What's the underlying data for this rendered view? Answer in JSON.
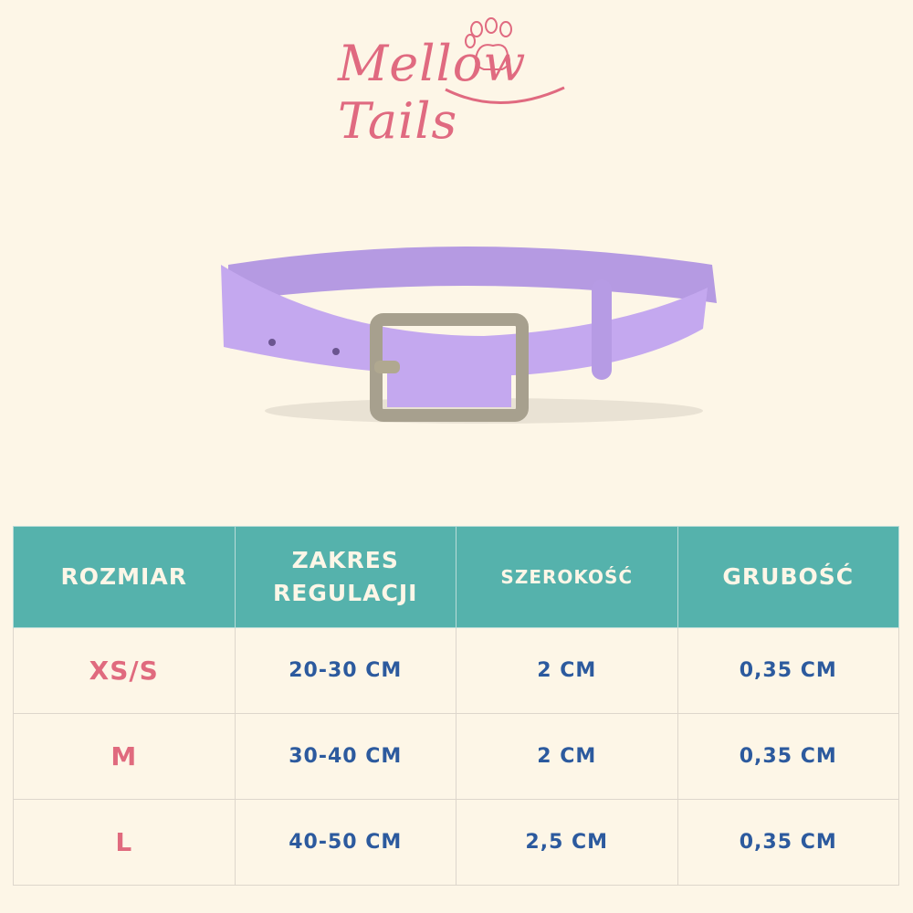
{
  "brand": {
    "logo_text": "Mellow Tails",
    "colors": {
      "pink": "#e06a7e",
      "teal": "#55b2ac",
      "blue": "#2c5a9e",
      "background": "#fdf6e7"
    }
  },
  "product": {
    "image": "purple-collar",
    "color": "#c1a5ec"
  },
  "table": {
    "headers": [
      "ROZMIAR",
      "ZAKRES REGULACJI",
      "SZEROKOŚĆ",
      "GRUBOŚĆ"
    ],
    "rows": [
      {
        "size": "XS/S",
        "range": "20-30 CM",
        "width": "2 CM",
        "thickness": "0,35 CM"
      },
      {
        "size": "M",
        "range": "30-40 CM",
        "width": "2 CM",
        "thickness": "0,35 CM"
      },
      {
        "size": "L",
        "range": "40-50 CM",
        "width": "2,5 CM",
        "thickness": "0,35 CM"
      }
    ]
  }
}
